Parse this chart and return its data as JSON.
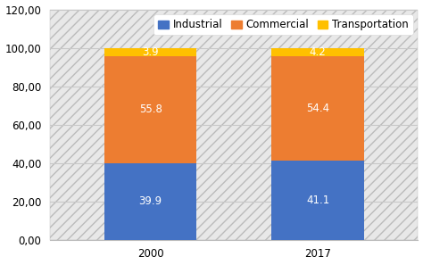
{
  "categories": [
    "2000",
    "2017"
  ],
  "industrial": [
    39.9,
    41.1
  ],
  "commercial": [
    55.8,
    54.4
  ],
  "transportation": [
    3.9,
    4.2
  ],
  "industrial_color": "#4472c4",
  "commercial_color": "#ed7d31",
  "transportation_color": "#ffc000",
  "ylim": [
    0,
    120
  ],
  "yticks": [
    0,
    20,
    40,
    60,
    80,
    100,
    120
  ],
  "ytick_labels": [
    "0,00",
    "20,00",
    "40,00",
    "60,00",
    "80,00",
    "100,00",
    "120,00"
  ],
  "legend_labels": [
    "Industrial",
    "Commercial",
    "Transportation"
  ],
  "bar_width": 0.55,
  "background_color": "#ffffff",
  "plot_bg_color": "#e8e8e8",
  "grid_color": "#c8c8c8",
  "label_fontsize": 8.5,
  "legend_fontsize": 8.5,
  "tick_fontsize": 8.5,
  "hatch_color": "#c0c0c0"
}
